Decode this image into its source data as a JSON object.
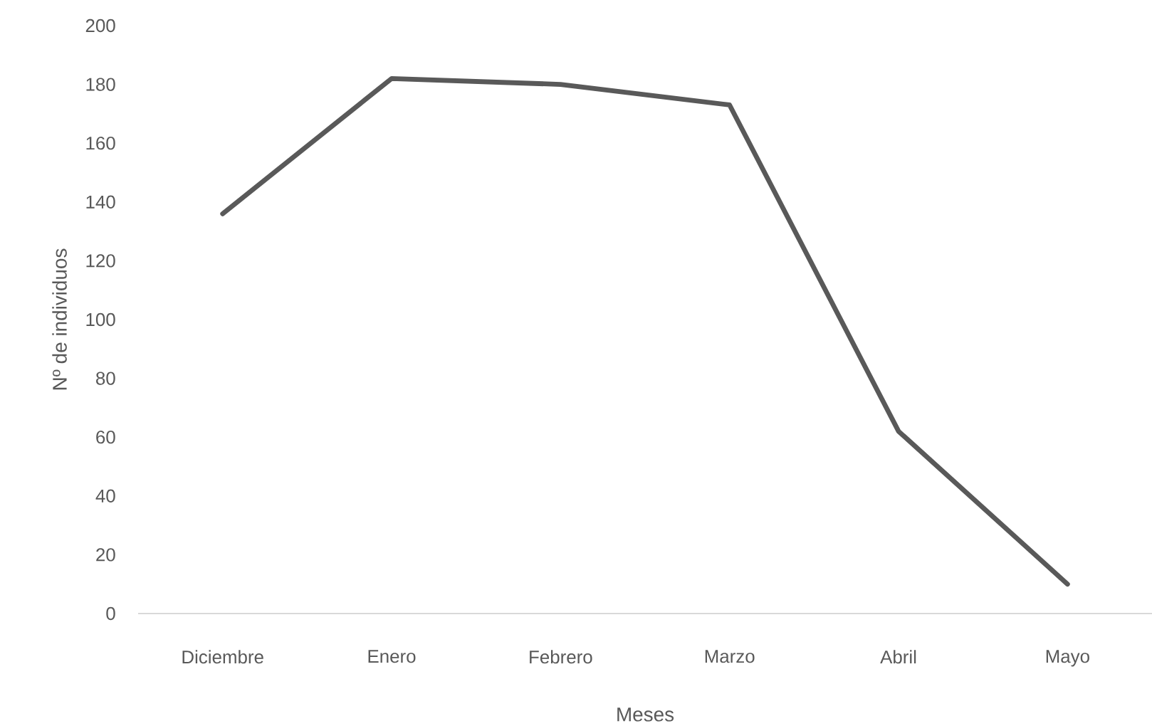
{
  "chart_data": {
    "type": "line",
    "xlabel": "Meses",
    "ylabel": "Nº de individuos",
    "categories": [
      "Diciembre",
      "Enero",
      "Febrero",
      "Marzo",
      "Abril",
      "Mayo"
    ],
    "series": [
      {
        "color": "#595959",
        "values": [
          136,
          182,
          180,
          173,
          62,
          10
        ]
      }
    ],
    "ylim": [
      0,
      200
    ],
    "yticks": [
      0,
      20,
      40,
      60,
      80,
      100,
      120,
      140,
      160,
      180,
      200
    ],
    "grid": false,
    "marker": "none",
    "line_style": "solid"
  }
}
